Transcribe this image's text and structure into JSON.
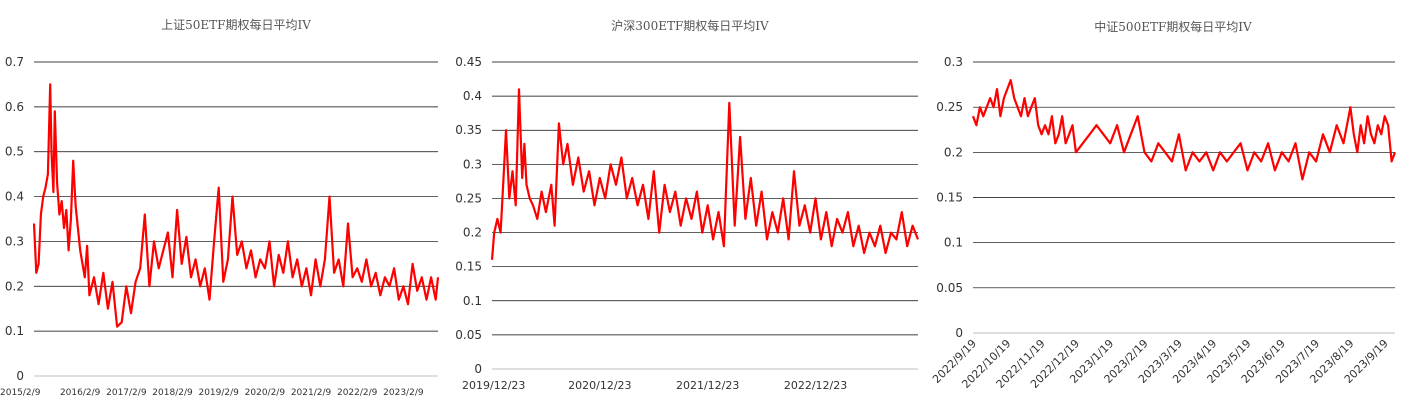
{
  "chart_data": [
    {
      "type": "line",
      "title": "上证50ETF期权每日平均IV",
      "xlabel": "",
      "ylabel": "",
      "ylim": [
        0,
        0.7
      ],
      "yticks": [
        "0",
        "0.1",
        "0.2",
        "0.3",
        "0.4",
        "0.5",
        "0.6",
        "0.7"
      ],
      "xticks": [
        "2015/2/9",
        "2016/2/9",
        "2017/2/9",
        "2018/2/9",
        "2019/2/9",
        "2020/2/9",
        "2021/2/9",
        "2022/2/9",
        "2023/2/9"
      ],
      "xlim": [
        0,
        8.75
      ],
      "grid": true,
      "legend": "none",
      "series": [
        {
          "color": "#ff0000",
          "x": [
            0,
            0.05,
            0.1,
            0.15,
            0.2,
            0.25,
            0.3,
            0.35,
            0.38,
            0.42,
            0.45,
            0.5,
            0.55,
            0.6,
            0.65,
            0.7,
            0.75,
            0.8,
            0.85,
            0.9,
            0.95,
            1.0,
            1.05,
            1.1,
            1.15,
            1.2,
            1.3,
            1.4,
            1.5,
            1.6,
            1.7,
            1.8,
            1.9,
            2.0,
            2.1,
            2.2,
            2.3,
            2.4,
            2.5,
            2.6,
            2.7,
            2.8,
            2.9,
            3.0,
            3.1,
            3.2,
            3.3,
            3.4,
            3.5,
            3.6,
            3.7,
            3.8,
            3.9,
            4.0,
            4.1,
            4.2,
            4.3,
            4.4,
            4.5,
            4.6,
            4.7,
            4.8,
            4.9,
            5.0,
            5.1,
            5.2,
            5.3,
            5.4,
            5.5,
            5.6,
            5.7,
            5.8,
            5.9,
            6.0,
            6.1,
            6.2,
            6.3,
            6.4,
            6.5,
            6.6,
            6.7,
            6.8,
            6.9,
            7.0,
            7.1,
            7.2,
            7.3,
            7.4,
            7.5,
            7.6,
            7.7,
            7.8,
            7.9,
            8.0,
            8.1,
            8.2,
            8.3,
            8.4,
            8.5,
            8.6,
            8.7,
            8.75
          ],
          "y": [
            0.34,
            0.23,
            0.25,
            0.36,
            0.4,
            0.42,
            0.45,
            0.65,
            0.5,
            0.41,
            0.59,
            0.43,
            0.36,
            0.39,
            0.33,
            0.37,
            0.28,
            0.35,
            0.48,
            0.38,
            0.33,
            0.28,
            0.25,
            0.22,
            0.29,
            0.18,
            0.22,
            0.16,
            0.23,
            0.15,
            0.21,
            0.11,
            0.12,
            0.2,
            0.14,
            0.21,
            0.24,
            0.36,
            0.2,
            0.3,
            0.24,
            0.28,
            0.32,
            0.22,
            0.37,
            0.25,
            0.31,
            0.22,
            0.26,
            0.2,
            0.24,
            0.17,
            0.3,
            0.42,
            0.21,
            0.26,
            0.4,
            0.27,
            0.3,
            0.24,
            0.28,
            0.22,
            0.26,
            0.24,
            0.3,
            0.2,
            0.27,
            0.23,
            0.3,
            0.22,
            0.26,
            0.2,
            0.24,
            0.18,
            0.26,
            0.2,
            0.26,
            0.4,
            0.23,
            0.26,
            0.2,
            0.34,
            0.22,
            0.24,
            0.21,
            0.26,
            0.2,
            0.23,
            0.18,
            0.22,
            0.2,
            0.24,
            0.17,
            0.2,
            0.16,
            0.25,
            0.19,
            0.22,
            0.17,
            0.22,
            0.17,
            0.22
          ]
        }
      ]
    },
    {
      "type": "line",
      "title": "沪深300ETF期权每日平均IV",
      "xlabel": "",
      "ylabel": "",
      "ylim": [
        0,
        0.45
      ],
      "yticks": [
        "0",
        "0.05",
        "0.1",
        "0.15",
        "0.2",
        "0.25",
        "0.3",
        "0.35",
        "0.4",
        "0.45"
      ],
      "xticks": [
        "2019/12/23",
        "2020/12/23",
        "2021/12/23",
        "2022/12/23"
      ],
      "xlim": [
        0,
        3.95
      ],
      "grid": true,
      "legend": "none",
      "series": [
        {
          "color": "#ff0000",
          "x": [
            0,
            0.02,
            0.05,
            0.08,
            0.1,
            0.13,
            0.16,
            0.19,
            0.22,
            0.25,
            0.28,
            0.3,
            0.32,
            0.35,
            0.38,
            0.42,
            0.46,
            0.5,
            0.55,
            0.58,
            0.62,
            0.66,
            0.7,
            0.75,
            0.8,
            0.85,
            0.9,
            0.95,
            1.0,
            1.05,
            1.1,
            1.15,
            1.2,
            1.25,
            1.3,
            1.35,
            1.4,
            1.45,
            1.5,
            1.55,
            1.6,
            1.65,
            1.7,
            1.75,
            1.8,
            1.85,
            1.9,
            1.95,
            2.0,
            2.05,
            2.1,
            2.15,
            2.2,
            2.25,
            2.3,
            2.35,
            2.4,
            2.45,
            2.5,
            2.55,
            2.6,
            2.65,
            2.7,
            2.75,
            2.8,
            2.85,
            2.9,
            2.95,
            3.0,
            3.05,
            3.1,
            3.15,
            3.2,
            3.25,
            3.3,
            3.35,
            3.4,
            3.45,
            3.5,
            3.55,
            3.6,
            3.65,
            3.7,
            3.75,
            3.8,
            3.85,
            3.9,
            3.95
          ],
          "y": [
            0.16,
            0.2,
            0.22,
            0.2,
            0.26,
            0.35,
            0.25,
            0.29,
            0.24,
            0.41,
            0.28,
            0.33,
            0.27,
            0.25,
            0.24,
            0.22,
            0.26,
            0.23,
            0.27,
            0.21,
            0.36,
            0.3,
            0.33,
            0.27,
            0.31,
            0.26,
            0.29,
            0.24,
            0.28,
            0.25,
            0.3,
            0.27,
            0.31,
            0.25,
            0.28,
            0.24,
            0.27,
            0.22,
            0.29,
            0.2,
            0.27,
            0.23,
            0.26,
            0.21,
            0.25,
            0.22,
            0.26,
            0.2,
            0.24,
            0.19,
            0.23,
            0.18,
            0.39,
            0.21,
            0.34,
            0.22,
            0.28,
            0.21,
            0.26,
            0.19,
            0.23,
            0.2,
            0.25,
            0.19,
            0.29,
            0.21,
            0.24,
            0.2,
            0.25,
            0.19,
            0.23,
            0.18,
            0.22,
            0.2,
            0.23,
            0.18,
            0.21,
            0.17,
            0.2,
            0.18,
            0.21,
            0.17,
            0.2,
            0.19,
            0.23,
            0.18,
            0.21,
            0.19
          ]
        }
      ]
    },
    {
      "type": "line",
      "title": "中证500ETF期权每日平均IV",
      "xlabel": "",
      "ylabel": "",
      "ylim": [
        0,
        0.3
      ],
      "yticks": [
        "0",
        "0.05",
        "0.1",
        "0.15",
        "0.2",
        "0.25",
        "0.3"
      ],
      "xticks": [
        "2022/9/19",
        "2022/10/19",
        "2022/11/19",
        "2022/12/19",
        "2023/1/19",
        "2023/2/19",
        "2023/3/19",
        "2023/4/19",
        "2023/5/19",
        "2023/6/19",
        "2023/7/19",
        "2023/8/19",
        "2023/9/19"
      ],
      "xlim": [
        0,
        12.3
      ],
      "grid": true,
      "legend": "none",
      "series": [
        {
          "color": "#ff0000",
          "x": [
            0,
            0.1,
            0.2,
            0.3,
            0.4,
            0.5,
            0.6,
            0.7,
            0.8,
            0.9,
            1.0,
            1.1,
            1.2,
            1.3,
            1.4,
            1.5,
            1.6,
            1.7,
            1.8,
            1.9,
            2.0,
            2.1,
            2.2,
            2.3,
            2.4,
            2.5,
            2.6,
            2.7,
            2.8,
            2.9,
            3.0,
            3.2,
            3.4,
            3.6,
            3.8,
            4.0,
            4.2,
            4.4,
            4.6,
            4.8,
            5.0,
            5.2,
            5.4,
            5.6,
            5.8,
            6.0,
            6.2,
            6.4,
            6.6,
            6.8,
            7.0,
            7.2,
            7.4,
            7.6,
            7.8,
            8.0,
            8.2,
            8.4,
            8.6,
            8.8,
            9.0,
            9.2,
            9.4,
            9.6,
            9.8,
            10.0,
            10.2,
            10.4,
            10.6,
            10.8,
            11.0,
            11.1,
            11.2,
            11.3,
            11.4,
            11.5,
            11.6,
            11.7,
            11.8,
            11.9,
            12.0,
            12.1,
            12.2,
            12.3
          ],
          "y": [
            0.24,
            0.23,
            0.25,
            0.24,
            0.25,
            0.26,
            0.25,
            0.27,
            0.24,
            0.26,
            0.27,
            0.28,
            0.26,
            0.25,
            0.24,
            0.26,
            0.24,
            0.25,
            0.26,
            0.23,
            0.22,
            0.23,
            0.22,
            0.24,
            0.21,
            0.22,
            0.24,
            0.21,
            0.22,
            0.23,
            0.2,
            0.21,
            0.22,
            0.23,
            0.22,
            0.21,
            0.23,
            0.2,
            0.22,
            0.24,
            0.2,
            0.19,
            0.21,
            0.2,
            0.19,
            0.22,
            0.18,
            0.2,
            0.19,
            0.2,
            0.18,
            0.2,
            0.19,
            0.2,
            0.21,
            0.18,
            0.2,
            0.19,
            0.21,
            0.18,
            0.2,
            0.19,
            0.21,
            0.17,
            0.2,
            0.19,
            0.22,
            0.2,
            0.23,
            0.21,
            0.25,
            0.22,
            0.2,
            0.23,
            0.21,
            0.24,
            0.22,
            0.21,
            0.23,
            0.22,
            0.24,
            0.23,
            0.19,
            0.2
          ]
        }
      ]
    }
  ]
}
